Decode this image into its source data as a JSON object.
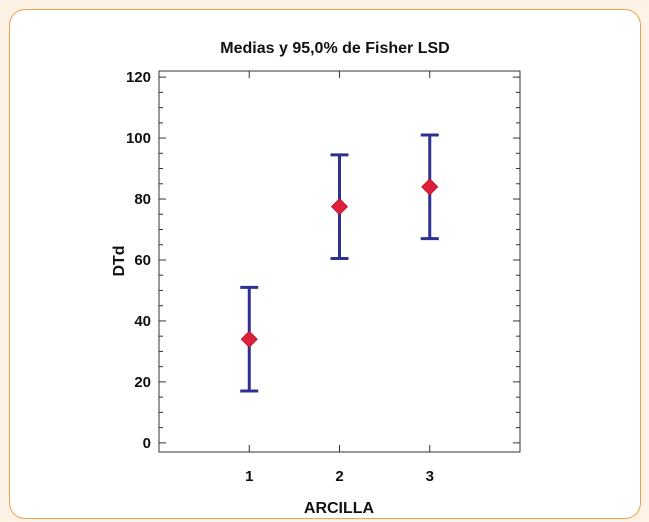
{
  "chart_data": {
    "type": "scatter",
    "title": "Medias y 95,0% de Fisher LSD",
    "xlabel": "ARCILLA",
    "ylabel": "DTd",
    "categories": [
      "1",
      "2",
      "3"
    ],
    "x_range": [
      0,
      4
    ],
    "ylim": [
      -3,
      122
    ],
    "y_ticks": [
      "0",
      "20",
      "40",
      "60",
      "80",
      "100",
      "120"
    ],
    "series": [
      {
        "means": [
          34,
          77.5,
          84
        ],
        "lower": [
          17,
          60.5,
          67
        ],
        "upper": [
          51,
          94.5,
          101
        ]
      }
    ],
    "grid": false,
    "legend": "none",
    "colors": {
      "error_bar": "#2e3192",
      "marker": "#e0203a"
    }
  }
}
